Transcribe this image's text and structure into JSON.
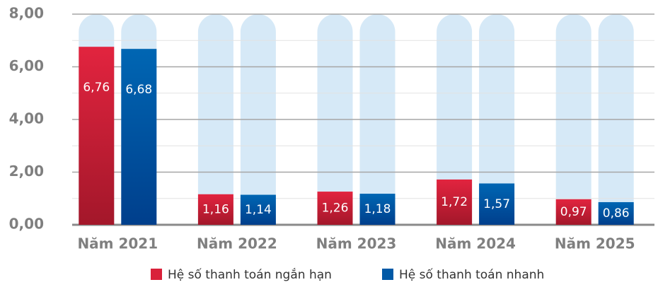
{
  "chart_data": {
    "type": "bar",
    "categories": [
      "Năm 2021",
      "Năm 2022",
      "Năm 2023",
      "Năm 2024",
      "Năm 2025"
    ],
    "series": [
      {
        "name": "Hệ số thanh toán ngắn hạn",
        "color": "#d9213a",
        "values": [
          6.76,
          1.16,
          1.26,
          1.72,
          0.97
        ],
        "value_labels": [
          "6,76",
          "1,16",
          "1,26",
          "1,72",
          "0,97"
        ]
      },
      {
        "name": "Hệ số thanh toán nhanh",
        "color": "#0059a6",
        "values": [
          6.68,
          1.14,
          1.18,
          1.57,
          0.86
        ],
        "value_labels": [
          "6,68",
          "1,14",
          "1,18",
          "1,57",
          "0,86"
        ]
      }
    ],
    "ylim": [
      0,
      8
    ],
    "yticks": [
      {
        "value": 0,
        "label": "0,00"
      },
      {
        "value": 2,
        "label": "2,00"
      },
      {
        "value": 4,
        "label": "4,00"
      },
      {
        "value": 6,
        "label": "6,00"
      },
      {
        "value": 8,
        "label": "8,00"
      }
    ],
    "minor_yticks": [
      1,
      3,
      5,
      7
    ],
    "grid": true
  }
}
